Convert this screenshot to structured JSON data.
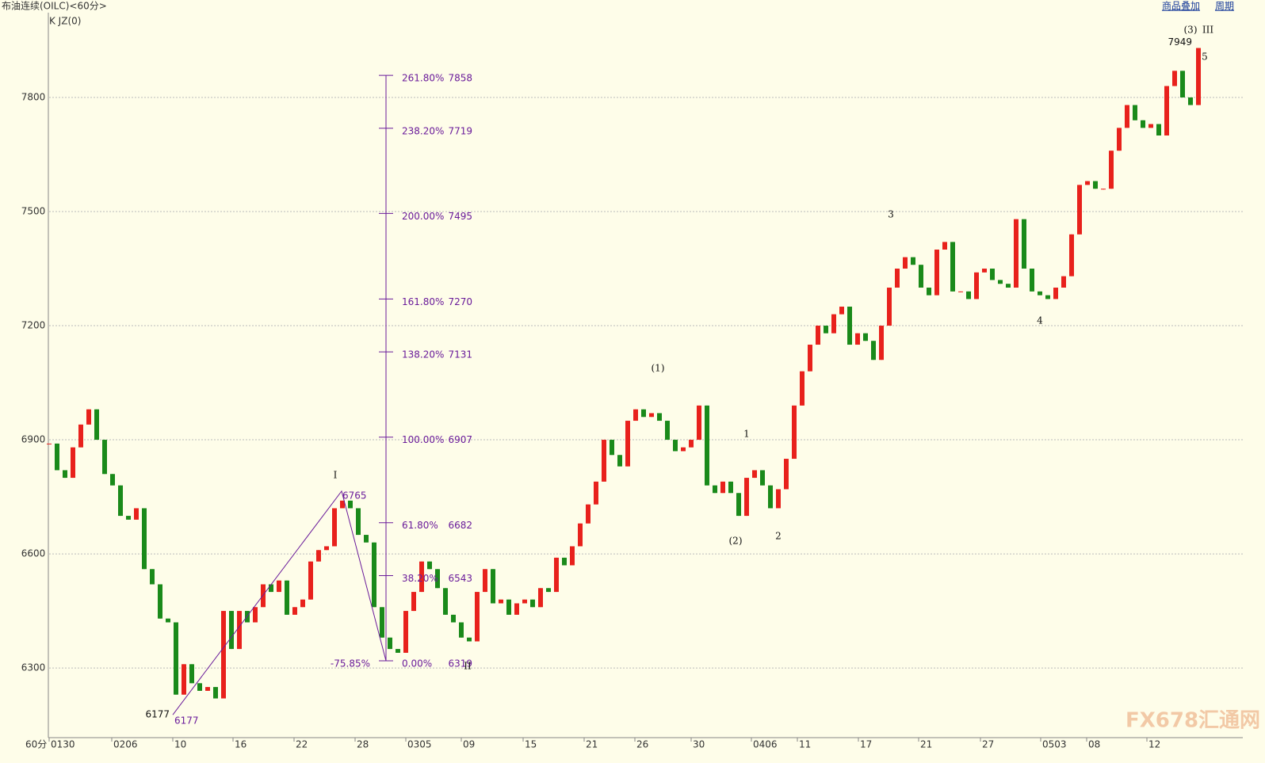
{
  "header": {
    "title": "布油连续(OILC)<60分>",
    "indicator": "K  JZ(0)",
    "links": [
      "商品叠加",
      "周期"
    ],
    "period": "60分"
  },
  "chart_data": {
    "type": "candlestick",
    "values": [
      6890,
      6820,
      6800,
      6880,
      6940,
      6980,
      6900,
      6810,
      6780,
      6700,
      6690,
      6720,
      6560,
      6520,
      6430,
      6420,
      6230,
      6310,
      6260,
      6240,
      6250,
      6220,
      6450,
      6350,
      6450,
      6420,
      6460,
      6520,
      6500,
      6530,
      6440,
      6460,
      6480,
      6580,
      6610,
      6620,
      6720,
      6740,
      6720,
      6650,
      6630,
      6460,
      6380,
      6350,
      6340,
      6450,
      6500,
      6580,
      6560,
      6510,
      6440,
      6420,
      6380,
      6370,
      6500,
      6560,
      6470,
      6480,
      6440,
      6470,
      6480,
      6460,
      6510,
      6500,
      6590,
      6570,
      6620,
      6680,
      6730,
      6790,
      6900,
      6860,
      6830,
      6950,
      6980,
      6960,
      6970,
      6950,
      6900,
      6870,
      6880,
      6900,
      6990,
      6780,
      6760,
      6790,
      6760,
      6700,
      6800,
      6820,
      6780,
      6720,
      6770,
      6850,
      6990,
      7080,
      7150,
      7200,
      7180,
      7230,
      7250,
      7150,
      7180,
      7160,
      7110,
      7200,
      7300,
      7350,
      7380,
      7360,
      7300,
      7280,
      7400,
      7420,
      7290,
      7290,
      7270,
      7340,
      7350,
      7320,
      7310,
      7300,
      7480,
      7350,
      7290,
      7280,
      7270,
      7300,
      7330,
      7440,
      7570,
      7580,
      7560,
      7560,
      7660,
      7720,
      7780,
      7740,
      7720,
      7730,
      7700,
      7830,
      7870,
      7800,
      7780,
      7930
    ],
    "up_color": "#e8211c",
    "down_color": "#1a8a1a",
    "xlim": [
      0,
      150.6
    ],
    "xticks": [
      {
        "value": 0,
        "label": "0130"
      },
      {
        "value": 7.9,
        "label": "0206"
      },
      {
        "value": 15.6,
        "label": "10"
      },
      {
        "value": 23.2,
        "label": "16"
      },
      {
        "value": 30.9,
        "label": "22"
      },
      {
        "value": 38.6,
        "label": "28"
      },
      {
        "value": 45,
        "label": "0305"
      },
      {
        "value": 52,
        "label": "09"
      },
      {
        "value": 59.8,
        "label": "15"
      },
      {
        "value": 67.5,
        "label": "21"
      },
      {
        "value": 73.9,
        "label": "26"
      },
      {
        "value": 81,
        "label": "30"
      },
      {
        "value": 88.6,
        "label": "0406"
      },
      {
        "value": 94.4,
        "label": "11"
      },
      {
        "value": 102.1,
        "label": "17"
      },
      {
        "value": 109.7,
        "label": "21"
      },
      {
        "value": 117.5,
        "label": "27"
      },
      {
        "value": 125.1,
        "label": "0503"
      },
      {
        "value": 130.9,
        "label": "08"
      },
      {
        "value": 138.5,
        "label": "12"
      }
    ],
    "ylim": [
      6119,
      8027
    ],
    "yticks": [
      6300,
      6600,
      6900,
      7200,
      7500,
      7800
    ],
    "grid": true,
    "fibonacci": {
      "color": "#6a1b9a",
      "extension": "-75.85%",
      "levels": [
        {
          "ratio": "261.80%",
          "price": 7858
        },
        {
          "ratio": "238.20%",
          "price": 7719
        },
        {
          "ratio": "200.00%",
          "price": 7495
        },
        {
          "ratio": "161.80%",
          "price": 7270
        },
        {
          "ratio": "138.20%",
          "price": 7131
        },
        {
          "ratio": "100.00%",
          "price": 6907
        },
        {
          "ratio": "61.80%",
          "price": 6682
        },
        {
          "ratio": "38.20%",
          "price": 6543
        },
        {
          "ratio": "0.00%",
          "price": 6319
        }
      ]
    },
    "trend": {
      "x": [
        15.6,
        36.9,
        42.5
      ],
      "prices": [
        6177,
        6765,
        6319
      ]
    },
    "last_high": {
      "x": 144.8,
      "price": 7949
    },
    "wave_labels": [
      "I",
      "II",
      "III",
      "(1)",
      "(2)",
      "(3)",
      "1",
      "2",
      "3",
      "4",
      "5"
    ]
  },
  "watermark": "FX678汇通网"
}
